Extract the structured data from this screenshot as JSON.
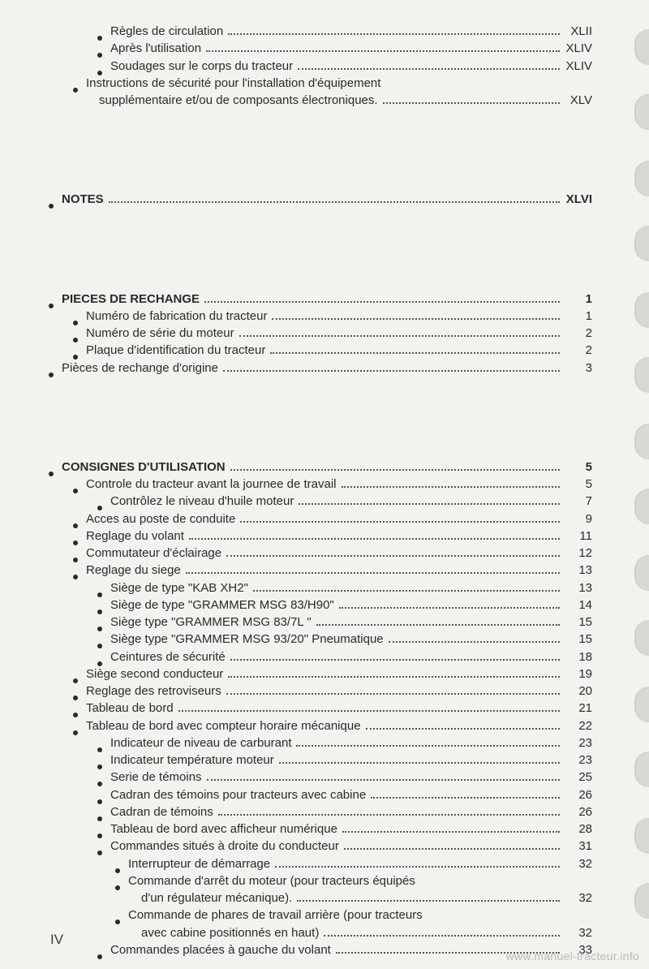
{
  "pageNumber": "IV",
  "watermark": "www.manuel-tracteur.info",
  "toc": [
    {
      "indent": 2,
      "label": "Règles de circulation",
      "page": "XLII"
    },
    {
      "indent": 2,
      "label": "Après l'utilisation",
      "page": "XLIV"
    },
    {
      "indent": 2,
      "label": "Soudages sur le corps du tracteur",
      "page": "XLIV"
    },
    {
      "indent": 1,
      "label": "Instructions de sécurité pour l'installation d'équipement",
      "continue": "supplémentaire et/ou de composants électroniques.",
      "page": "XLV"
    },
    {
      "gap": "lg"
    },
    {
      "indent": 0,
      "label": "NOTES",
      "page": "XLVI",
      "bold": true
    },
    {
      "gap": "lg"
    },
    {
      "indent": 0,
      "label": "PIECES DE RECHANGE",
      "page": "1",
      "bold": true
    },
    {
      "indent": 1,
      "label": "Numéro de fabrication du tracteur",
      "page": "1"
    },
    {
      "indent": 1,
      "label": "Numéro de série du moteur",
      "page": "2"
    },
    {
      "indent": 1,
      "label": "Plaque d'identification du tracteur",
      "page": "2"
    },
    {
      "indent": 0,
      "label": "Pièces de rechange d'origine",
      "page": "3"
    },
    {
      "gap": "lg"
    },
    {
      "indent": 0,
      "label": "CONSIGNES D'UTILISATION",
      "page": "5",
      "bold": true
    },
    {
      "indent": 1,
      "label": "Controle du tracteur avant la journee de travail",
      "page": "5"
    },
    {
      "indent": 2,
      "label": "Contrôlez le niveau d'huile moteur",
      "page": "7"
    },
    {
      "indent": 1,
      "label": "Acces au poste de conduite",
      "page": "9"
    },
    {
      "indent": 1,
      "label": "Reglage du volant",
      "page": "11"
    },
    {
      "indent": 1,
      "label": "Commutateur d'éclairage",
      "page": "12"
    },
    {
      "indent": 1,
      "label": "Reglage du siege",
      "page": "13"
    },
    {
      "indent": 2,
      "label": "Siège de type \"KAB XH2\"",
      "page": "13"
    },
    {
      "indent": 2,
      "label": "Siège de type \"GRAMMER MSG 83/H90\"",
      "page": "14"
    },
    {
      "indent": 2,
      "label": "Siège type \"GRAMMER MSG 83/7L \"",
      "page": "15"
    },
    {
      "indent": 2,
      "label": "Siège type \"GRAMMER MSG 93/20\" Pneumatique",
      "page": "15"
    },
    {
      "indent": 2,
      "label": "Ceintures de sécurité",
      "page": "18"
    },
    {
      "indent": 1,
      "label": "Siège second conducteur",
      "page": "19"
    },
    {
      "indent": 1,
      "label": "Reglage des retroviseurs",
      "page": "20"
    },
    {
      "indent": 1,
      "label": "Tableau de bord",
      "page": "21"
    },
    {
      "indent": 1,
      "label": "Tableau de bord avec compteur horaire mécanique",
      "page": "22"
    },
    {
      "indent": 2,
      "label": "Indicateur de niveau de carburant",
      "page": "23"
    },
    {
      "indent": 2,
      "label": "Indicateur température moteur",
      "page": "23"
    },
    {
      "indent": 2,
      "label": "Serie de témoins",
      "page": "25"
    },
    {
      "indent": 2,
      "label": "Cadran des témoins pour tracteurs avec cabine",
      "page": "26"
    },
    {
      "indent": 2,
      "label": "Cadran de témoins",
      "page": "26"
    },
    {
      "indent": 2,
      "label": "Tableau de bord avec afficheur numérique",
      "page": "28"
    },
    {
      "indent": 2,
      "label": "Commandes situés à droite du conducteur",
      "page": "31"
    },
    {
      "indent": 3,
      "label": "Interrupteur de démarrage",
      "page": "32"
    },
    {
      "indent": 3,
      "label": "Commande d'arrêt du moteur (pour tracteurs équipés",
      "continue": "d'un régulateur mécanique).",
      "page": "32"
    },
    {
      "indent": 3,
      "label": "Commande de phares de travail arrière (pour tracteurs",
      "continue": "avec cabine positionnés en haut)",
      "page": "32"
    },
    {
      "indent": 2,
      "label": "Commandes placées à gauche du volant",
      "page": "33"
    }
  ],
  "bindingTabs": [
    36,
    116,
    198,
    278,
    360,
    440,
    522,
    602,
    684,
    764,
    846,
    926,
    1008,
    1088
  ]
}
